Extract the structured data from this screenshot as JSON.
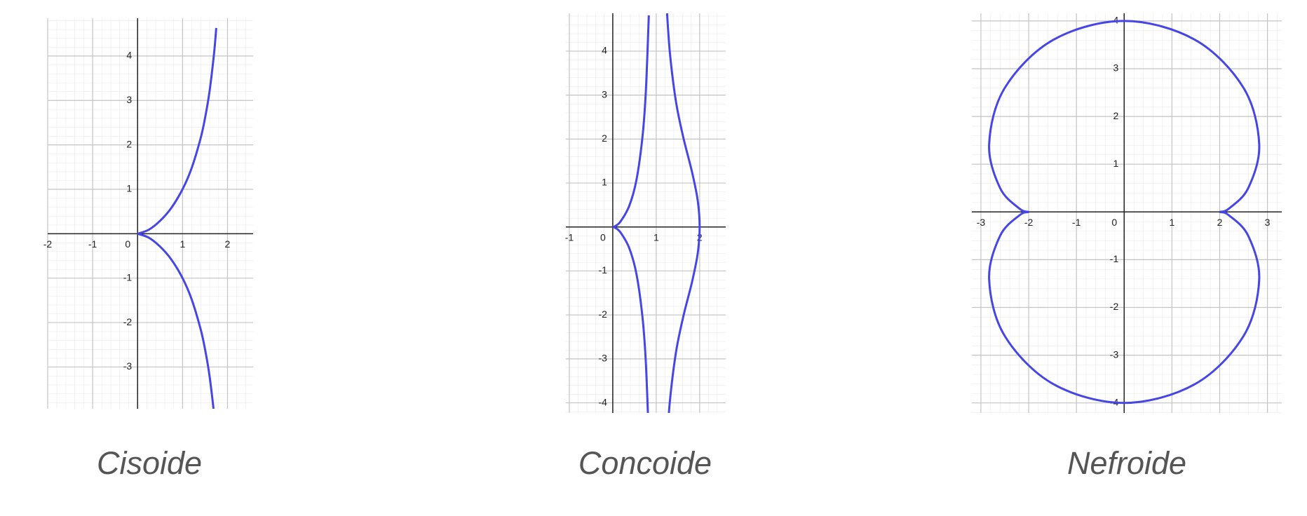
{
  "chart_data": [
    {
      "type": "line",
      "title": "Cisoide",
      "grid": true,
      "xlim": [
        -2,
        2.57
      ],
      "ylim": [
        -3.94,
        4.85
      ],
      "xticks": [
        -2,
        -1,
        0,
        1,
        2
      ],
      "yticks": [
        -3,
        -2,
        -1,
        1,
        2,
        3,
        4
      ],
      "series": [
        {
          "color": "#4646e6",
          "x": [
            0,
            0.25,
            0.5,
            0.75,
            1,
            1.2,
            1.4,
            1.5,
            1.6,
            1.7,
            1.75
          ],
          "values": [
            0,
            0.09,
            0.29,
            0.58,
            1,
            1.47,
            2.14,
            2.6,
            3.2,
            4.05,
            4.63
          ]
        },
        {
          "color": "#4646e6",
          "x": [
            0,
            0.25,
            0.5,
            0.75,
            1,
            1.2,
            1.4,
            1.5,
            1.6,
            1.7,
            1.75
          ],
          "values": [
            0,
            -0.09,
            -0.29,
            -0.58,
            -1,
            -1.47,
            -2.14,
            -2.6,
            -3.2,
            -4.05,
            -4.63
          ]
        }
      ]
    },
    {
      "type": "line",
      "title": "Concoide",
      "grid": true,
      "xlim": [
        -1.08,
        2.6
      ],
      "ylim": [
        -4.23,
        4.86
      ],
      "xticks": [
        -1,
        0,
        1,
        2
      ],
      "yticks": [
        -4,
        -3,
        -2,
        -1,
        1,
        2,
        3,
        4
      ],
      "series": [
        {
          "color": "#4646e6",
          "x": [
            1.239,
            1.315,
            1.454,
            1.622,
            1.825,
            1.955,
            2,
            1.955,
            1.825,
            1.622,
            1.454,
            1.315,
            1.239
          ],
          "values": [
            -5.042,
            -3.959,
            -2.856,
            -2.044,
            -1.249,
            -0.605,
            0,
            0.605,
            1.249,
            2.044,
            2.856,
            3.959,
            5.042
          ]
        },
        {
          "color": "#4646e6",
          "x": [
            0,
            0.045,
            0.175,
            0.378,
            0.546,
            0.685,
            0.762,
            0.83
          ],
          "values": [
            0,
            0.014,
            0.12,
            0.477,
            1.074,
            2.061,
            3.1,
            4.813
          ]
        },
        {
          "color": "#4646e6",
          "x": [
            0,
            0.045,
            0.175,
            0.378,
            0.546,
            0.685,
            0.762,
            0.83
          ],
          "values": [
            0,
            -0.014,
            -0.12,
            -0.477,
            -1.074,
            -2.061,
            -3.1,
            -4.813
          ]
        }
      ]
    },
    {
      "type": "line",
      "title": "Nefroide",
      "grid": true,
      "xlim": [
        -3.19,
        3.3
      ],
      "ylim": [
        -4.21,
        4.16
      ],
      "xticks": [
        -3,
        -2,
        -1,
        0,
        1,
        2,
        3
      ],
      "yticks": [
        -4,
        -3,
        -2,
        -1,
        1,
        2,
        3,
        4
      ],
      "series": [
        {
          "color": "#4646e6",
          "x": [
            2,
            2.191,
            2.598,
            2.828,
            2.5,
            1.484,
            0,
            -1.484,
            -2.5,
            -2.828,
            -2.598,
            -2.191,
            -2
          ],
          "values": [
            0,
            0.069,
            0.5,
            1.414,
            2.598,
            3.605,
            4,
            3.605,
            2.598,
            1.414,
            0.5,
            0.069,
            0
          ]
        },
        {
          "color": "#4646e6",
          "x": [
            -2,
            -2.191,
            -2.598,
            -2.828,
            -2.5,
            -1.484,
            0,
            1.484,
            2.5,
            2.828,
            2.598,
            2.191,
            2
          ],
          "values": [
            0,
            -0.069,
            -0.5,
            -1.414,
            -2.598,
            -3.605,
            -4,
            -3.605,
            -2.598,
            -1.414,
            -0.5,
            -0.069,
            0
          ]
        }
      ]
    }
  ]
}
